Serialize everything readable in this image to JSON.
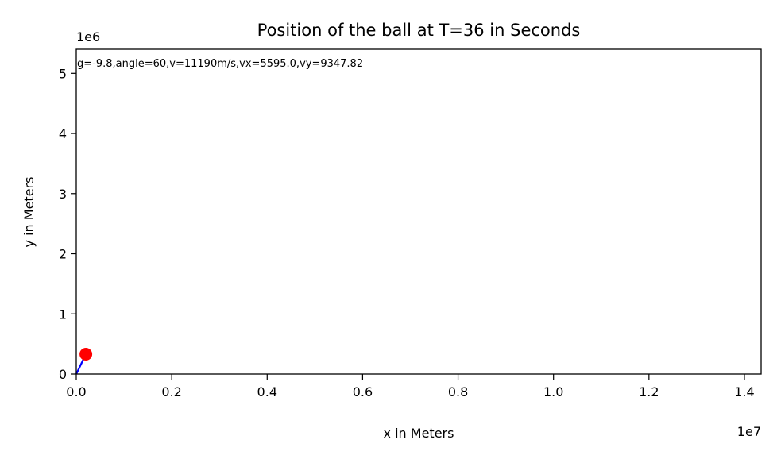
{
  "chart_data": {
    "type": "line",
    "title": "Position of the ball at T=36 in Seconds",
    "xlabel": "x in Meters",
    "ylabel": "y in Meters",
    "xlim": [
      0,
      14350000
    ],
    "ylim": [
      0,
      5400000
    ],
    "x_offset_label": "1e7",
    "y_offset_label": "1e6",
    "x_ticks": [
      {
        "value": 0,
        "label": "0.0"
      },
      {
        "value": 2000000,
        "label": "0.2"
      },
      {
        "value": 4000000,
        "label": "0.4"
      },
      {
        "value": 6000000,
        "label": "0.6"
      },
      {
        "value": 8000000,
        "label": "0.8"
      },
      {
        "value": 10000000,
        "label": "1.0"
      },
      {
        "value": 12000000,
        "label": "1.2"
      },
      {
        "value": 14000000,
        "label": "1.4"
      }
    ],
    "y_ticks": [
      {
        "value": 0,
        "label": "0"
      },
      {
        "value": 1000000,
        "label": "1"
      },
      {
        "value": 2000000,
        "label": "2"
      },
      {
        "value": 3000000,
        "label": "3"
      },
      {
        "value": 4000000,
        "label": "4"
      },
      {
        "value": 5000000,
        "label": "5"
      }
    ],
    "annotation": "g=-9.8,angle=60,v=11190m/s,vx=5595.0,vy=9347.82",
    "series": [
      {
        "color": "#0000ff",
        "x": [
          0,
          201420
        ],
        "y": [
          0,
          330170
        ]
      }
    ],
    "point": {
      "x": 201420,
      "y": 330170,
      "color": "#ff0000"
    },
    "grid": false,
    "legend": "none"
  }
}
